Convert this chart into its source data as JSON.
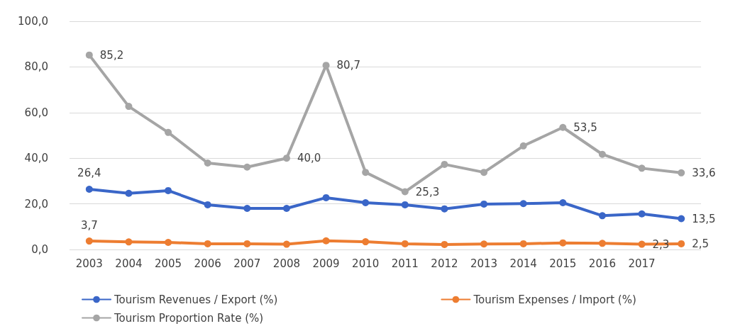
{
  "chart_data": {
    "type": "line",
    "categories": [
      "2003",
      "2004",
      "2005",
      "2006",
      "2007",
      "2008",
      "2009",
      "2010",
      "2011",
      "2012",
      "2013",
      "2014",
      "2015",
      "2016",
      "2017",
      null
    ],
    "series": [
      {
        "name": "Tourism Revenues / Export (%)",
        "color": "#3a66c8",
        "values": [
          26.4,
          24.6,
          25.8,
          19.6,
          18.0,
          18.0,
          22.7,
          20.5,
          19.6,
          17.8,
          19.9,
          20.1,
          20.5,
          14.8,
          15.6,
          13.5
        ],
        "value_labels": [
          "26,4",
          null,
          null,
          null,
          null,
          null,
          null,
          null,
          null,
          null,
          null,
          null,
          null,
          null,
          null,
          "13,5"
        ]
      },
      {
        "name": "Tourism Expenses / Import (%)",
        "color": "#ed7d31",
        "values": [
          3.7,
          3.3,
          3.1,
          2.5,
          2.5,
          2.3,
          3.8,
          3.4,
          2.5,
          2.2,
          2.4,
          2.5,
          2.9,
          2.7,
          2.3,
          2.5
        ],
        "value_labels": [
          "3,7",
          null,
          null,
          null,
          null,
          null,
          null,
          null,
          null,
          null,
          null,
          null,
          null,
          null,
          "2,3",
          "2,5"
        ]
      },
      {
        "name": "Tourism Proportion Rate (%)",
        "color": "#a5a5a5",
        "values": [
          85.2,
          62.7,
          51.3,
          37.9,
          36.1,
          40.0,
          80.7,
          33.8,
          25.3,
          37.3,
          33.8,
          45.4,
          53.5,
          41.7,
          35.6,
          33.6
        ],
        "value_labels": [
          "85,2",
          null,
          null,
          null,
          null,
          "40,0",
          "80,7",
          null,
          "25,3",
          null,
          null,
          null,
          "53,5",
          null,
          null,
          "33,6"
        ]
      }
    ],
    "ylim": [
      0,
      100
    ],
    "yticks": [
      {
        "value": 0,
        "label": "0,0"
      },
      {
        "value": 20,
        "label": "20,0"
      },
      {
        "value": 40,
        "label": "40,0"
      },
      {
        "value": 60,
        "label": "60,0"
      },
      {
        "value": 80,
        "label": "80,0"
      },
      {
        "value": 100,
        "label": "100,0"
      }
    ],
    "grid": "y",
    "legend": "bottom",
    "marker": "circle",
    "line_style": "solid"
  }
}
